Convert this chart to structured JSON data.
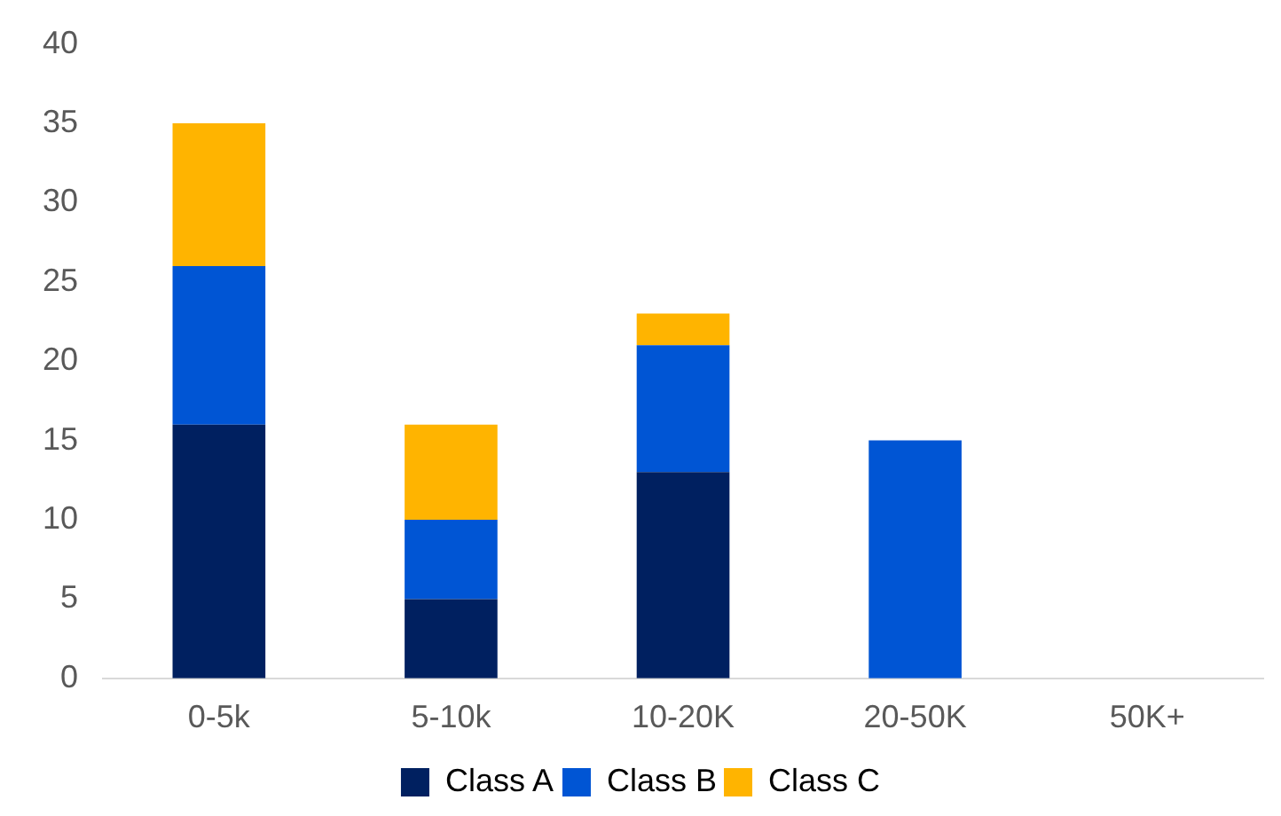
{
  "chart_data": {
    "type": "bar",
    "stacked": true,
    "categories": [
      "0-5k",
      "5-10k",
      "10-20K",
      "20-50K",
      "50K+"
    ],
    "series": [
      {
        "name": "Class A",
        "color": "#002060",
        "values": [
          16,
          5,
          13,
          0,
          0
        ]
      },
      {
        "name": "Class B",
        "color": "#0055d4",
        "values": [
          10,
          5,
          8,
          15,
          0
        ]
      },
      {
        "name": "Class C",
        "color": "#ffb400",
        "values": [
          9,
          6,
          2,
          0,
          0
        ]
      }
    ],
    "ylim": [
      0,
      40
    ],
    "yticks": [
      0,
      5,
      10,
      15,
      20,
      25,
      30,
      35,
      40
    ],
    "grid": false,
    "legend": "bottom"
  }
}
